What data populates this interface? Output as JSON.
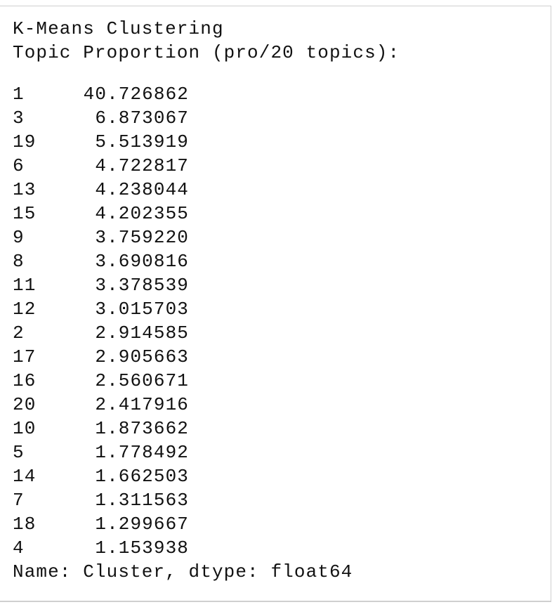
{
  "output": {
    "title": "K-Means Clustering",
    "subtitle": "Topic Proportion (pro/20 topics):",
    "rows": [
      [
        "1",
        "40.726862"
      ],
      [
        "3",
        "6.873067"
      ],
      [
        "19",
        "5.513919"
      ],
      [
        "6",
        "4.722817"
      ],
      [
        "13",
        "4.238044"
      ],
      [
        "15",
        "4.202355"
      ],
      [
        "9",
        "3.759220"
      ],
      [
        "8",
        "3.690816"
      ],
      [
        "11",
        "3.378539"
      ],
      [
        "12",
        "3.015703"
      ],
      [
        "2",
        "2.914585"
      ],
      [
        "17",
        "2.905663"
      ],
      [
        "16",
        "2.560671"
      ],
      [
        "20",
        "2.417916"
      ],
      [
        "10",
        "1.873662"
      ],
      [
        "5",
        "1.778492"
      ],
      [
        "14",
        "1.662503"
      ],
      [
        "7",
        "1.311563"
      ],
      [
        "18",
        "1.299667"
      ],
      [
        "4",
        "1.153938"
      ]
    ],
    "footer": "Name: Cluster, dtype: float64"
  }
}
